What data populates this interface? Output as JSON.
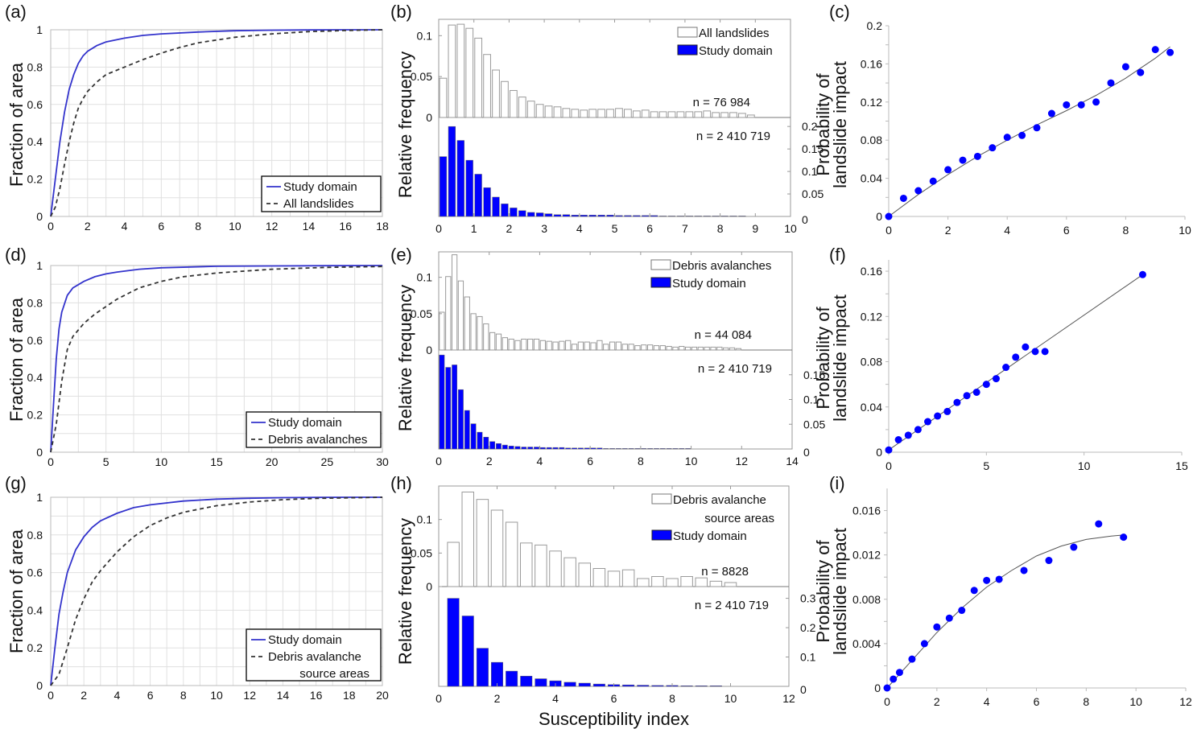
{
  "figure": {
    "xlabel_common": "Susceptibility index",
    "colors": {
      "blue": "#0000ff",
      "curve_blue": "#3333cc",
      "dashed": "#333333",
      "grid": "#e0e0e0",
      "hist_outline": "#9a9a9a",
      "fit": "#555555"
    }
  },
  "chart_data": [
    {
      "id": "a",
      "panel_label": "(a)",
      "type": "line",
      "ylabel": "Fraction of area",
      "xlabel": "",
      "xlim": [
        0,
        18
      ],
      "ylim": [
        0,
        1
      ],
      "xticks": [
        "0",
        "2",
        "4",
        "6",
        "8",
        "10",
        "12",
        "14",
        "16",
        "18"
      ],
      "yticks": [
        "0",
        "0.2",
        "0.4",
        "0.6",
        "0.8",
        "1"
      ],
      "grid": true,
      "legend_position": "bottom-right",
      "series": [
        {
          "name": "Study domain",
          "style": "solid",
          "x": [
            0,
            0.25,
            0.5,
            0.75,
            1,
            1.25,
            1.5,
            1.75,
            2,
            2.5,
            3,
            4,
            5,
            6,
            8,
            10,
            12,
            14,
            16,
            18
          ],
          "y": [
            0,
            0.2,
            0.4,
            0.56,
            0.68,
            0.76,
            0.82,
            0.86,
            0.885,
            0.915,
            0.935,
            0.955,
            0.97,
            0.978,
            0.988,
            0.995,
            0.998,
            0.999,
            1,
            1
          ]
        },
        {
          "name": "All landslides",
          "style": "dashed",
          "x": [
            0,
            0.25,
            0.5,
            0.75,
            1,
            1.25,
            1.5,
            1.75,
            2,
            2.5,
            3,
            4,
            5,
            6,
            7,
            8,
            10,
            12,
            14,
            16,
            18
          ],
          "y": [
            0,
            0.05,
            0.15,
            0.28,
            0.4,
            0.5,
            0.58,
            0.63,
            0.67,
            0.72,
            0.76,
            0.8,
            0.84,
            0.875,
            0.905,
            0.93,
            0.96,
            0.978,
            0.99,
            0.996,
            1
          ]
        }
      ]
    },
    {
      "id": "b",
      "panel_label": "(b)",
      "type": "bar",
      "ylabel": "Relative frequency",
      "xlabel": "",
      "xlim": [
        0,
        10
      ],
      "xticks": [
        "0",
        "1",
        "2",
        "3",
        "4",
        "5",
        "6",
        "7",
        "8",
        "9",
        "10"
      ],
      "top": {
        "name": "All landslides",
        "n_label": "n = 76 984",
        "ylim": [
          0,
          0.12
        ],
        "yticks": [
          "0",
          "0.05",
          "0.1"
        ],
        "bin_width": 0.25,
        "start": 0.125,
        "values": [
          0.048,
          0.113,
          0.114,
          0.109,
          0.097,
          0.077,
          0.058,
          0.044,
          0.033,
          0.025,
          0.02,
          0.016,
          0.014,
          0.013,
          0.011,
          0.01,
          0.009,
          0.01,
          0.01,
          0.01,
          0.011,
          0.01,
          0.008,
          0.009,
          0.007,
          0.007,
          0.007,
          0.007,
          0.007,
          0.007,
          0.008,
          0.006,
          0.006,
          0.006,
          0.005,
          0.003
        ]
      },
      "bottom": {
        "name": "Study domain",
        "n_label": "n = 2 410 719",
        "ylim": [
          0,
          0.22
        ],
        "yticks": [
          "0",
          "0.05",
          "0.1",
          "0.15",
          "0.2"
        ],
        "bin_width": 0.25,
        "start": 0.125,
        "values": [
          0.133,
          0.2,
          0.169,
          0.125,
          0.094,
          0.064,
          0.043,
          0.028,
          0.019,
          0.013,
          0.009,
          0.008,
          0.006,
          0.004,
          0.004,
          0.003,
          0.003,
          0.003,
          0.003,
          0.003,
          0.002,
          0.002,
          0.002,
          0.002,
          0.002,
          0.001,
          0.001,
          0.001,
          0.001,
          0.001,
          0.001,
          0.001,
          0.001,
          0.001,
          0.001
        ]
      },
      "legend": [
        {
          "name": "All landslides",
          "fill": "white"
        },
        {
          "name": "Study domain",
          "fill": "blue"
        }
      ]
    },
    {
      "id": "c",
      "panel_label": "(c)",
      "type": "scatter",
      "ylabel": "Probability of landslide impact",
      "ylabel_lines": [
        "Probability of",
        "landslide impact"
      ],
      "xlim": [
        0,
        10
      ],
      "ylim": [
        0,
        0.2
      ],
      "xticks": [
        "0",
        "2",
        "4",
        "6",
        "8",
        "10"
      ],
      "yticks": [
        "0",
        "0.04",
        "0.08",
        "0.12",
        "0.16",
        "0.2"
      ],
      "x": [
        0,
        0.5,
        1,
        1.5,
        2,
        2.5,
        3,
        3.5,
        4,
        4.5,
        5,
        5.5,
        6,
        6.5,
        7,
        7.5,
        8,
        8.5,
        9,
        9.5
      ],
      "y": [
        0,
        0.019,
        0.027,
        0.037,
        0.049,
        0.059,
        0.063,
        0.072,
        0.083,
        0.085,
        0.093,
        0.108,
        0.117,
        0.117,
        0.12,
        0.14,
        0.157,
        0.151,
        0.175,
        0.172
      ],
      "fit": {
        "x": [
          0,
          1,
          2,
          3,
          4,
          5,
          6,
          7,
          8,
          9,
          9.5
        ],
        "y": [
          0,
          0.023,
          0.044,
          0.063,
          0.08,
          0.096,
          0.111,
          0.127,
          0.145,
          0.166,
          0.178
        ]
      }
    },
    {
      "id": "d",
      "panel_label": "(d)",
      "type": "line",
      "ylabel": "Fraction of area",
      "xlabel": "",
      "xlim": [
        0,
        30
      ],
      "ylim": [
        0,
        1
      ],
      "xticks": [
        "0",
        "5",
        "10",
        "15",
        "20",
        "25",
        "30"
      ],
      "yticks": [
        "0",
        "0.2",
        "0.4",
        "0.6",
        "0.8",
        "1"
      ],
      "grid": true,
      "legend_position": "bottom-right",
      "series": [
        {
          "name": "Study domain",
          "style": "solid",
          "x": [
            0,
            0.25,
            0.5,
            0.75,
            1,
            1.5,
            2,
            3,
            4,
            5,
            6,
            8,
            10,
            15,
            20,
            25,
            30
          ],
          "y": [
            0,
            0.25,
            0.5,
            0.66,
            0.75,
            0.84,
            0.88,
            0.915,
            0.94,
            0.955,
            0.965,
            0.98,
            0.988,
            0.996,
            0.998,
            0.999,
            1
          ]
        },
        {
          "name": "Debris avalanches",
          "style": "dashed",
          "x": [
            0,
            0.5,
            1,
            1.5,
            2,
            3,
            4,
            5,
            6,
            8,
            10,
            12,
            15,
            20,
            25,
            30
          ],
          "y": [
            0,
            0.15,
            0.38,
            0.55,
            0.62,
            0.69,
            0.74,
            0.78,
            0.82,
            0.88,
            0.915,
            0.94,
            0.96,
            0.98,
            0.99,
            0.995
          ]
        }
      ]
    },
    {
      "id": "e",
      "panel_label": "(e)",
      "type": "bar",
      "ylabel": "Relative frequency",
      "xlabel": "",
      "xlim": [
        0,
        14
      ],
      "xticks": [
        "0",
        "2",
        "4",
        "6",
        "8",
        "10",
        "12",
        "14"
      ],
      "top": {
        "name": "Debris avalanches",
        "n_label": "n = 44 084",
        "ylim": [
          0,
          0.135
        ],
        "yticks": [
          "0",
          "0.05",
          "0.1"
        ],
        "bin_width": 0.25,
        "start": 0.125,
        "values": [
          0.052,
          0.101,
          0.131,
          0.095,
          0.073,
          0.05,
          0.046,
          0.036,
          0.024,
          0.022,
          0.017,
          0.015,
          0.013,
          0.015,
          0.015,
          0.015,
          0.013,
          0.012,
          0.011,
          0.012,
          0.013,
          0.008,
          0.011,
          0.011,
          0.01,
          0.013,
          0.008,
          0.011,
          0.011,
          0.008,
          0.008,
          0.006,
          0.007,
          0.007,
          0.006,
          0.006,
          0.005,
          0.004,
          0.005,
          0.004,
          0.004,
          0.004,
          0.004,
          0.004,
          0.004,
          0.003,
          0.003,
          0.002
        ]
      },
      "bottom": {
        "name": "Study domain",
        "n_label": "n = 2 410 719",
        "ylim": [
          0,
          0.2
        ],
        "yticks": [
          "0",
          "0.05",
          "0.1",
          "0.15"
        ],
        "bin_width": 0.25,
        "start": 0.125,
        "values": [
          0.19,
          0.165,
          0.17,
          0.12,
          0.078,
          0.051,
          0.034,
          0.024,
          0.015,
          0.011,
          0.008,
          0.006,
          0.005,
          0.004,
          0.004,
          0.004,
          0.003,
          0.003,
          0.003,
          0.003,
          0.002,
          0.002,
          0.002,
          0.002,
          0.002,
          0.002,
          0.001,
          0.001,
          0.001,
          0.001,
          0.001,
          0.001,
          0.001,
          0.001,
          0.001,
          0.001,
          0.001,
          0.001,
          0.001,
          0.001
        ]
      },
      "legend": [
        {
          "name": "Debris avalanches",
          "fill": "white"
        },
        {
          "name": "Study domain",
          "fill": "blue"
        }
      ]
    },
    {
      "id": "f",
      "panel_label": "(f)",
      "type": "scatter",
      "ylabel": "Probability of landslide impact",
      "ylabel_lines": [
        "Probability of",
        "landslide impact"
      ],
      "xlim": [
        0,
        15
      ],
      "ylim": [
        0,
        0.17
      ],
      "xticks": [
        "0",
        "5",
        "10",
        "15"
      ],
      "yticks": [
        "0",
        "0.04",
        "0.08",
        "0.12",
        "0.16"
      ],
      "x": [
        0,
        0.5,
        1,
        1.5,
        2,
        2.5,
        3,
        3.5,
        4,
        4.5,
        5,
        5.5,
        6,
        6.5,
        7,
        7.5,
        8,
        13
      ],
      "y": [
        0.002,
        0.011,
        0.015,
        0.02,
        0.027,
        0.032,
        0.036,
        0.044,
        0.05,
        0.053,
        0.06,
        0.065,
        0.075,
        0.084,
        0.093,
        0.089,
        0.089,
        0.157
      ],
      "fit": {
        "x": [
          0,
          13
        ],
        "y": [
          0.002,
          0.157
        ]
      }
    },
    {
      "id": "g",
      "panel_label": "(g)",
      "type": "line",
      "ylabel": "Fraction of area",
      "xlabel": "",
      "xlim": [
        0,
        20
      ],
      "ylim": [
        0,
        1
      ],
      "xticks": [
        "0",
        "2",
        "4",
        "6",
        "8",
        "10",
        "12",
        "14",
        "16",
        "18",
        "20"
      ],
      "yticks": [
        "0",
        "0.2",
        "0.4",
        "0.6",
        "0.8",
        "1"
      ],
      "grid": true,
      "legend_position": "bottom-right",
      "series": [
        {
          "name": "Study domain",
          "style": "solid",
          "x": [
            0,
            0.25,
            0.5,
            0.75,
            1,
            1.5,
            2,
            2.5,
            3,
            4,
            5,
            6,
            8,
            10,
            12,
            14,
            16,
            18,
            20
          ],
          "y": [
            0,
            0.2,
            0.38,
            0.5,
            0.6,
            0.72,
            0.79,
            0.84,
            0.875,
            0.915,
            0.945,
            0.96,
            0.98,
            0.99,
            0.995,
            0.998,
            0.999,
            1,
            1
          ]
        },
        {
          "name": "Debris avalanche source areas",
          "style": "dashed",
          "x": [
            0,
            0.5,
            1,
            1.5,
            2,
            2.5,
            3,
            4,
            5,
            6,
            7,
            8,
            10,
            12,
            14,
            16,
            18,
            20
          ],
          "y": [
            0,
            0.06,
            0.2,
            0.35,
            0.46,
            0.55,
            0.61,
            0.71,
            0.79,
            0.85,
            0.89,
            0.92,
            0.955,
            0.975,
            0.987,
            0.994,
            0.997,
            1
          ]
        }
      ]
    },
    {
      "id": "h",
      "panel_label": "(h)",
      "type": "bar",
      "ylabel": "Relative frequency",
      "xlabel": "Susceptibility index",
      "xlim": [
        0,
        12
      ],
      "xticks": [
        "0",
        "2",
        "4",
        "6",
        "8",
        "10",
        "12"
      ],
      "top": {
        "name": "Debris avalanche source areas",
        "n_label": "n = 8828",
        "ylim": [
          0,
          0.15
        ],
        "yticks": [
          "0",
          "0.05",
          "0.1"
        ],
        "bin_width": 0.5,
        "start": 0.5,
        "values": [
          0.066,
          0.141,
          0.13,
          0.114,
          0.096,
          0.065,
          0.062,
          0.053,
          0.043,
          0.035,
          0.027,
          0.023,
          0.025,
          0.012,
          0.015,
          0.012,
          0.015,
          0.013,
          0.008,
          0.006
        ]
      },
      "bottom": {
        "name": "Study domain",
        "n_label": "n = 2 410 719",
        "ylim": [
          0,
          0.34
        ],
        "yticks": [
          "0",
          "0.1",
          "0.2",
          "0.3"
        ],
        "bin_width": 0.5,
        "start": 0.5,
        "values": [
          0.3,
          0.24,
          0.13,
          0.082,
          0.052,
          0.035,
          0.026,
          0.019,
          0.014,
          0.011,
          0.008,
          0.006,
          0.005,
          0.004,
          0.003,
          0.003,
          0.002,
          0.002,
          0.002
        ]
      },
      "legend": [
        {
          "name": "Debris avalanche",
          "name_line2": "source areas",
          "fill": "white"
        },
        {
          "name": "Study domain",
          "fill": "blue"
        }
      ]
    },
    {
      "id": "i",
      "panel_label": "(i)",
      "type": "scatter",
      "ylabel": "Probability of landslide impact",
      "ylabel_lines": [
        "Probability of",
        "landslide impact"
      ],
      "xlim": [
        0,
        12
      ],
      "ylim": [
        0,
        0.018
      ],
      "xticks": [
        "0",
        "2",
        "4",
        "6",
        "8",
        "10",
        "12"
      ],
      "yticks": [
        "0",
        "0.004",
        "0.008",
        "0.012",
        "0.016"
      ],
      "x": [
        0,
        0.25,
        0.5,
        1,
        1.5,
        2,
        2.5,
        3,
        3.5,
        4,
        4.5,
        5.5,
        6.5,
        7.5,
        8.5,
        9.5
      ],
      "y": [
        0,
        0.0008,
        0.0014,
        0.0026,
        0.004,
        0.0055,
        0.0063,
        0.007,
        0.0088,
        0.0097,
        0.0098,
        0.0106,
        0.0115,
        0.0127,
        0.0148,
        0.0136
      ],
      "fit": {
        "x": [
          0,
          1,
          2,
          3,
          4,
          5,
          6,
          7,
          8,
          9,
          9.5
        ],
        "y": [
          0,
          0.0025,
          0.005,
          0.0072,
          0.0091,
          0.0106,
          0.0119,
          0.0128,
          0.0134,
          0.0137,
          0.0138
        ]
      }
    }
  ]
}
